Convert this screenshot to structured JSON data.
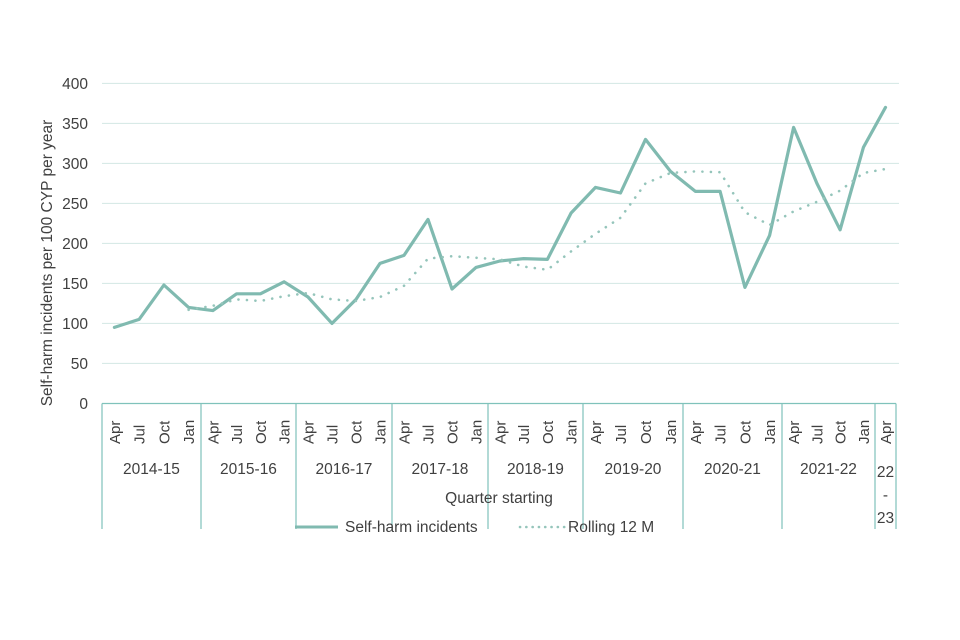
{
  "chart_data": {
    "type": "line",
    "title": "",
    "xlabel": "Quarter starting",
    "ylabel": "Self-harm incidents per 100 CYP per year",
    "ylim": [
      0,
      400
    ],
    "yticks": [
      400,
      350,
      300,
      250,
      200,
      150,
      100,
      50,
      0
    ],
    "grid": "horizontal",
    "legend_position": "bottom-center",
    "year_groups": [
      {
        "label": "2014-15",
        "quarters": [
          "Apr",
          "Jul",
          "Oct",
          "Jan"
        ]
      },
      {
        "label": "2015-16",
        "quarters": [
          "Apr",
          "Jul",
          "Oct",
          "Jan"
        ]
      },
      {
        "label": "2016-17",
        "quarters": [
          "Apr",
          "Jul",
          "Oct",
          "Jan"
        ]
      },
      {
        "label": "2017-18",
        "quarters": [
          "Apr",
          "Jul",
          "Oct",
          "Jan"
        ]
      },
      {
        "label": "2018-19",
        "quarters": [
          "Apr",
          "Jul",
          "Oct",
          "Jan"
        ]
      },
      {
        "label": "2019-20",
        "quarters": [
          "Apr",
          "Jul",
          "Oct",
          "Jan"
        ]
      },
      {
        "label": "2020-21",
        "quarters": [
          "Apr",
          "Jul",
          "Oct",
          "Jan"
        ]
      },
      {
        "label": "2021-22",
        "quarters": [
          "Apr",
          "Jul",
          "Oct",
          "Jan"
        ]
      },
      {
        "label_lines": [
          "22",
          "-",
          "23"
        ],
        "quarters": [
          "Apr"
        ]
      }
    ],
    "series": [
      {
        "name": "Self-harm incidents",
        "style": "solid",
        "start_index": 0,
        "values": [
          95,
          105,
          148,
          120,
          116,
          137,
          137,
          152,
          133,
          100,
          130,
          175,
          185,
          230,
          143,
          170,
          178,
          181,
          180,
          238,
          270,
          263,
          330,
          290,
          265,
          265,
          145,
          210,
          345,
          275,
          217,
          320,
          370
        ]
      },
      {
        "name": "Rolling 12 M",
        "style": "dotted",
        "start_index": 3,
        "values": [
          117,
          122,
          130,
          128,
          134,
          138,
          130,
          128,
          133,
          147,
          181,
          184,
          182,
          180,
          171,
          167,
          190,
          212,
          232,
          275,
          288,
          290,
          289,
          239,
          223,
          240,
          252,
          266,
          288,
          293
        ]
      }
    ],
    "colors": {
      "series_solid": "#80bab0",
      "series_dotted": "#95c5bb",
      "gridline": "#d8eae7",
      "axis_line": "#7fc2bb",
      "text": "#404040"
    }
  }
}
